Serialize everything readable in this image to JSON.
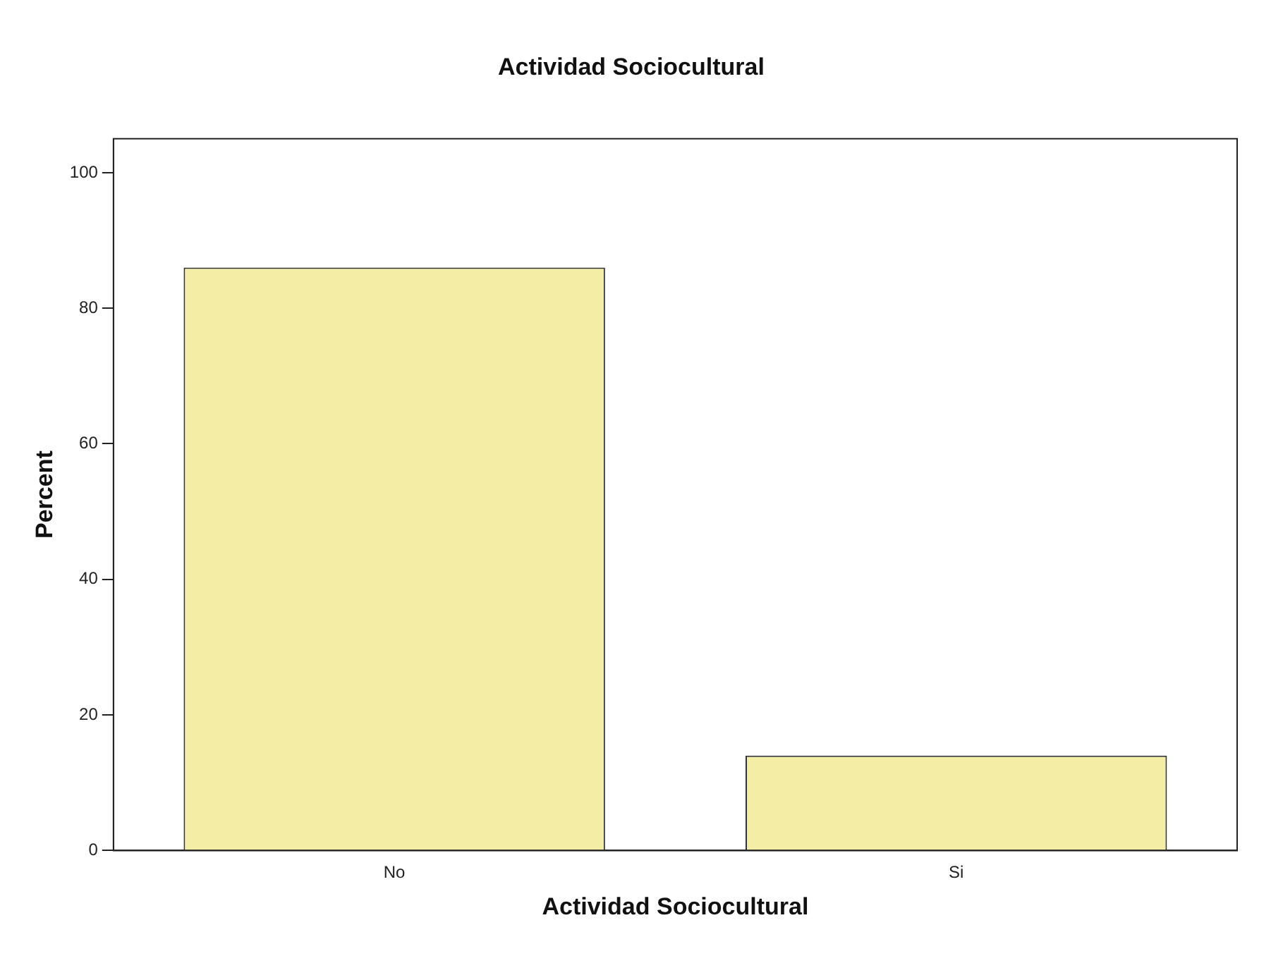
{
  "chart_data": {
    "type": "bar",
    "title": "Actividad Sociocultural",
    "xlabel": "Actividad Sociocultural",
    "ylabel": "Percent",
    "categories": [
      "No",
      "Si"
    ],
    "values": [
      86,
      14
    ],
    "color": "#f3eda6",
    "ylim": [
      0,
      105
    ],
    "yticks": [
      0,
      20,
      40,
      60,
      80,
      100
    ],
    "grid": false,
    "legend": false
  }
}
